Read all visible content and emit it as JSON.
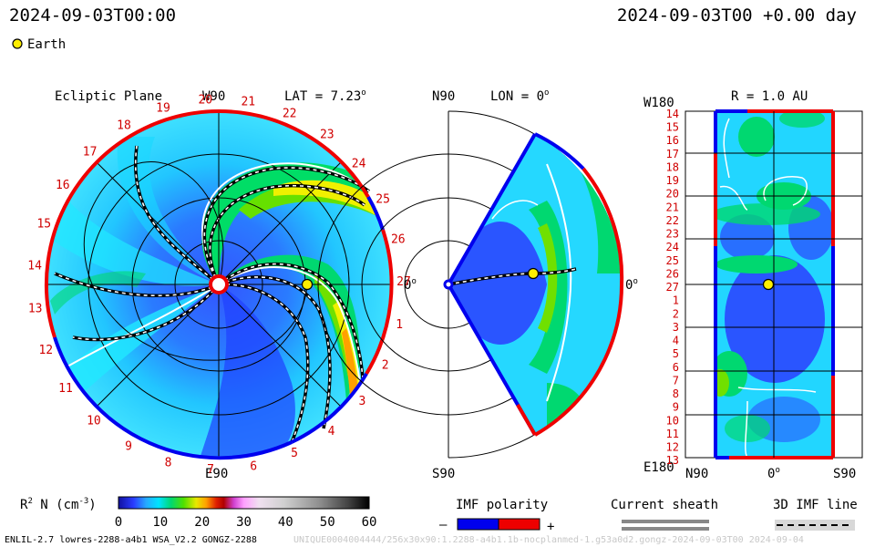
{
  "header": {
    "datetime_left": "2024-09-03T00:00",
    "datetime_right": "2024-09-03T00 +0.00 day"
  },
  "legend": {
    "earth_label": "Earth",
    "earth_color": "#ffee00"
  },
  "ecliptic": {
    "title": "Ecliptic Plane",
    "lat_text": "LAT = 7.23",
    "lat_sup": "o",
    "top_label": "W90",
    "bottom_label": "E90",
    "right_label": "0",
    "right_sup": "o",
    "carrington_ticks": [
      "19",
      "20",
      "21",
      "22",
      "23",
      "24",
      "25",
      "26",
      "27",
      "1",
      "2",
      "3",
      "4",
      "5",
      "6",
      "7",
      "8",
      "9",
      "10",
      "11",
      "12",
      "13",
      "14",
      "15",
      "16",
      "17",
      "18"
    ]
  },
  "meridional": {
    "top_label": "N90",
    "lon_text": "LON = 0",
    "lon_sup": "o",
    "bottom_label": "S90",
    "right_label": "0",
    "right_sup": "o"
  },
  "sphere": {
    "title": "R = 1.0 AU",
    "top_left": "W180",
    "bottom_left": "E180",
    "x_labels": [
      "N90",
      "0",
      "S90"
    ],
    "x_sup": "o",
    "y_labels": [
      "14",
      "15",
      "16",
      "17",
      "18",
      "19",
      "20",
      "21",
      "22",
      "23",
      "24",
      "25",
      "26",
      "27",
      "1",
      "2",
      "3",
      "4",
      "5",
      "6",
      "7",
      "8",
      "9",
      "10",
      "11",
      "12",
      "13"
    ]
  },
  "colorbar": {
    "label": "R",
    "label_sup": "2",
    "label_rest": " N (cm",
    "label_unit_sup": "-3",
    "label_end": ")",
    "ticks": [
      "0",
      "10",
      "20",
      "30",
      "40",
      "50",
      "60"
    ]
  },
  "imf": {
    "label": "IMF polarity",
    "minus": "–",
    "plus": "+",
    "neg_color": "#0000ee",
    "pos_color": "#ee0000"
  },
  "sheath": {
    "label": "Current sheath"
  },
  "imf3d": {
    "label": "3D IMF line"
  },
  "footer": {
    "left": "ENLIL-2.7 lowres-2288-a4b1 WSA_V2.2 GONGZ-2288",
    "right": "UNIQUE0004004444/256x30x90:1.2288-a4b1.1b-nocplanmed-1.g53a0d2.gongz-2024-09-03T00    2024-09-04"
  }
}
